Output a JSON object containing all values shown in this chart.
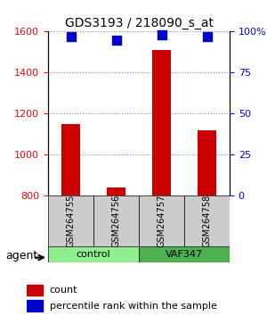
{
  "title": "GDS3193 / 218090_s_at",
  "samples": [
    "GSM264755",
    "GSM264756",
    "GSM264757",
    "GSM264758"
  ],
  "count_values": [
    1150,
    840,
    1510,
    1120
  ],
  "percentile_values": [
    97,
    95,
    98,
    97
  ],
  "groups": [
    {
      "label": "control",
      "indices": [
        0,
        1
      ],
      "color": "#90EE90"
    },
    {
      "label": "VAF347",
      "indices": [
        2,
        3
      ],
      "color": "#4CAF50"
    }
  ],
  "ylim_left": [
    800,
    1600
  ],
  "ylim_right": [
    0,
    100
  ],
  "yticks_left": [
    800,
    1000,
    1200,
    1400,
    1600
  ],
  "yticks_right": [
    0,
    25,
    50,
    75,
    100
  ],
  "ytick_labels_right": [
    "0",
    "25",
    "50",
    "75",
    "100%"
  ],
  "bar_color": "#CC0000",
  "dot_color": "#0000CC",
  "grid_color": "#888888",
  "bg_color": "#ffffff",
  "sample_box_color": "#CCCCCC",
  "agent_label": "agent",
  "legend_count_label": "count",
  "legend_percentile_label": "percentile rank within the sample",
  "bar_width": 0.4,
  "dot_size": 60
}
